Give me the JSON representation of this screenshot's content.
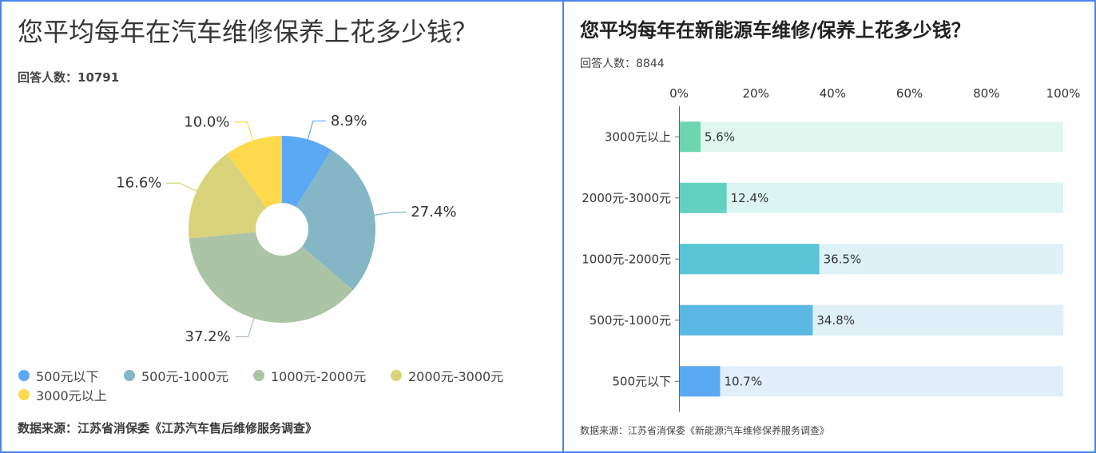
{
  "frame_color": "#4a86e8",
  "chart_data": [
    {
      "type": "pie",
      "title": "您平均每年在汽车维修保养上花多少钱？",
      "respondents_label": "回答人数：10791",
      "categories": [
        "500元以下",
        "500元-1000元",
        "1000元-2000元",
        "2000元-3000元",
        "3000元以上"
      ],
      "values": [
        8.9,
        27.4,
        37.2,
        16.6,
        10.0
      ],
      "value_suffix": "%",
      "colors": [
        "#5ba9f4",
        "#84b6c6",
        "#abc4a6",
        "#d9d37b",
        "#fed94c"
      ],
      "legend": "bottom-left",
      "source": "数据来源：江苏省消保委《江苏汽车售后维修服务调查》"
    },
    {
      "type": "bar",
      "orientation": "horizontal",
      "title": "您平均每年在新能源车维修/保养上花多少钱？",
      "respondents_label": "回答人数：8844",
      "categories": [
        "3000元以上",
        "2000元-3000元",
        "1000元-2000元",
        "500元-1000元",
        "500元以下"
      ],
      "values": [
        5.6,
        12.4,
        36.5,
        34.8,
        10.7
      ],
      "value_suffix": "%",
      "xlim": [
        0,
        100
      ],
      "xticks": [
        0,
        20,
        40,
        60,
        80,
        100
      ],
      "x_axis_position": "top",
      "grid": false,
      "colors": [
        "#6ed5b1",
        "#62d1c0",
        "#58c4d6",
        "#5ab8e2",
        "#5aa9f3"
      ],
      "track_colors": [
        "#e0f7ef",
        "#ddf5f2",
        "#ddf1f6",
        "#dfeff8",
        "#e1effc"
      ],
      "source": "数据来源：江苏省消保委《新能源汽车维修保养服务调查》"
    }
  ]
}
